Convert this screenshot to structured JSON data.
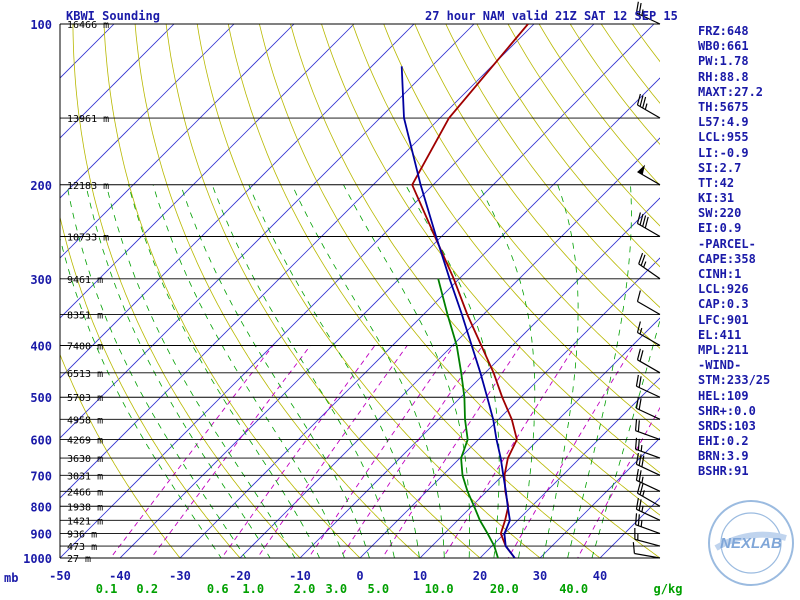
{
  "header": {
    "station_title": "KBWI Sounding",
    "valid_title": "27 hour NAM valid 21Z SAT 12 SEP 15"
  },
  "stats": [
    "FRZ:648",
    "WB0:661",
    "PW:1.78",
    "RH:88.8",
    "MAXT:27.2",
    "TH:5675",
    "L57:4.9",
    "LCL:955",
    "LI:-0.9",
    "SI:2.7",
    "TT:42",
    "KI:31",
    "SW:220",
    "EI:0.9",
    "-PARCEL-",
    "CAPE:358",
    "CINH:1",
    "LCL:926",
    "CAP:0.3",
    "LFC:901",
    "EL:411",
    "MPL:211",
    "-WIND-",
    "STM:233/25",
    "HEL:109",
    "SHR+:0.0",
    "SRDS:103",
    "EHI:0.2",
    "BRN:3.9",
    "BSHR:91"
  ],
  "logo": {
    "text_main": "NEXLAB",
    "text_ring_top": "Next Generation Weather Lab",
    "text_ring_bottom": "College of DuPage"
  },
  "chart_data": {
    "type": "line",
    "subtype": "skew-t log-p sounding",
    "y_axis": {
      "label": "mb",
      "scale": "log",
      "range": [
        1000,
        100
      ],
      "ticks": [
        100,
        200,
        300,
        400,
        500,
        600,
        700,
        800,
        900,
        1000
      ]
    },
    "x_axis": {
      "label": "",
      "range": [
        -50,
        50
      ],
      "ticks": [
        -50,
        -40,
        -30,
        -20,
        -10,
        0,
        10,
        20,
        30,
        40
      ]
    },
    "mixing_ratio_axis": {
      "unit": "g/kg",
      "ticks": [
        "0.1",
        "0.2",
        "0.6",
        "1.0",
        "2.0",
        "3.0",
        "5.0",
        "10.0",
        "20.0",
        "40.0"
      ]
    },
    "height_labels": [
      {
        "p": 100,
        "label": "16466 m"
      },
      {
        "p": 150,
        "label": "13961 m"
      },
      {
        "p": 200,
        "label": "12183 m"
      },
      {
        "p": 250,
        "label": "10733 m"
      },
      {
        "p": 300,
        "label": "9461 m"
      },
      {
        "p": 350,
        "label": "8351 m"
      },
      {
        "p": 400,
        "label": "7400 m"
      },
      {
        "p": 450,
        "label": "6513 m"
      },
      {
        "p": 500,
        "label": "5703 m"
      },
      {
        "p": 550,
        "label": "4958 m"
      },
      {
        "p": 600,
        "label": "4269 m"
      },
      {
        "p": 650,
        "label": "3630 m"
      },
      {
        "p": 700,
        "label": "3031 m"
      },
      {
        "p": 750,
        "label": "2466 m"
      },
      {
        "p": 800,
        "label": "1938 m"
      },
      {
        "p": 850,
        "label": "1421 m"
      },
      {
        "p": 900,
        "label": "936 m"
      },
      {
        "p": 950,
        "label": "473 m"
      },
      {
        "p": 1000,
        "label": "27 m"
      }
    ],
    "series": [
      {
        "color": "#a00000",
        "points": [
          [
            1000,
            25.8
          ],
          [
            950,
            22.3
          ],
          [
            900,
            19.4
          ],
          [
            850,
            17.9
          ],
          [
            800,
            16.1
          ],
          [
            750,
            13.1
          ],
          [
            700,
            10.3
          ],
          [
            650,
            8.0
          ],
          [
            600,
            6.4
          ],
          [
            550,
            2.2
          ],
          [
            500,
            -3.1
          ],
          [
            450,
            -8.6
          ],
          [
            400,
            -15.2
          ],
          [
            350,
            -22.7
          ],
          [
            300,
            -30.9
          ],
          [
            250,
            -41.1
          ],
          [
            200,
            -53.5
          ],
          [
            150,
            -58.5
          ],
          [
            100,
            -61.0
          ]
        ]
      },
      {
        "color": "#008000",
        "points": [
          [
            1000,
            23.0
          ],
          [
            950,
            20.4
          ],
          [
            900,
            17.2
          ],
          [
            850,
            13.7
          ],
          [
            800,
            10.4
          ],
          [
            750,
            6.8
          ],
          [
            700,
            3.3
          ],
          [
            650,
            0.2
          ],
          [
            600,
            -1.8
          ],
          [
            550,
            -5.6
          ],
          [
            500,
            -9.4
          ],
          [
            450,
            -14.0
          ],
          [
            400,
            -19.3
          ],
          [
            350,
            -26.0
          ],
          [
            300,
            -33.5
          ]
        ]
      },
      {
        "color": "#0000a0",
        "points": [
          [
            1000,
            25.8
          ],
          [
            950,
            22.3
          ],
          [
            900,
            20.0
          ],
          [
            850,
            18.7
          ],
          [
            800,
            16.0
          ],
          [
            750,
            13.2
          ],
          [
            700,
            10.1
          ],
          [
            650,
            6.8
          ],
          [
            600,
            3.0
          ],
          [
            550,
            -0.9
          ],
          [
            500,
            -5.6
          ],
          [
            450,
            -10.8
          ],
          [
            400,
            -16.8
          ],
          [
            350,
            -23.6
          ],
          [
            300,
            -31.6
          ],
          [
            250,
            -40.9
          ],
          [
            200,
            -52.1
          ],
          [
            150,
            -66.0
          ],
          [
            120,
            -75.0
          ]
        ]
      }
    ],
    "wind_barbs": [
      {
        "p": 1000,
        "dir": 280,
        "spd": 10
      },
      {
        "p": 950,
        "dir": 285,
        "spd": 15
      },
      {
        "p": 900,
        "dir": 290,
        "spd": 25
      },
      {
        "p": 850,
        "dir": 295,
        "spd": 25
      },
      {
        "p": 800,
        "dir": 300,
        "spd": 25
      },
      {
        "p": 750,
        "dir": 295,
        "spd": 25
      },
      {
        "p": 700,
        "dir": 295,
        "spd": 30
      },
      {
        "p": 650,
        "dir": 290,
        "spd": 25
      },
      {
        "p": 600,
        "dir": 290,
        "spd": 20
      },
      {
        "p": 550,
        "dir": 295,
        "spd": 20
      },
      {
        "p": 500,
        "dir": 295,
        "spd": 20
      },
      {
        "p": 450,
        "dir": 300,
        "spd": 20
      },
      {
        "p": 400,
        "dir": 300,
        "spd": 15
      },
      {
        "p": 350,
        "dir": 300,
        "spd": 10
      },
      {
        "p": 300,
        "dir": 305,
        "spd": 25
      },
      {
        "p": 250,
        "dir": 300,
        "spd": 40
      },
      {
        "p": 200,
        "dir": 300,
        "spd": 50
      },
      {
        "p": 150,
        "dir": 300,
        "spd": 35
      },
      {
        "p": 100,
        "dir": 295,
        "spd": 25
      }
    ],
    "colors": {
      "isotherm": "#3030d0",
      "dry_adiabat": "#b8b800",
      "moist_adiabat": "#00a000",
      "mixing_ratio": "#c000c0",
      "isobar": "#000000",
      "text": "#1a1aa8",
      "mr_text": "#00a000"
    }
  }
}
